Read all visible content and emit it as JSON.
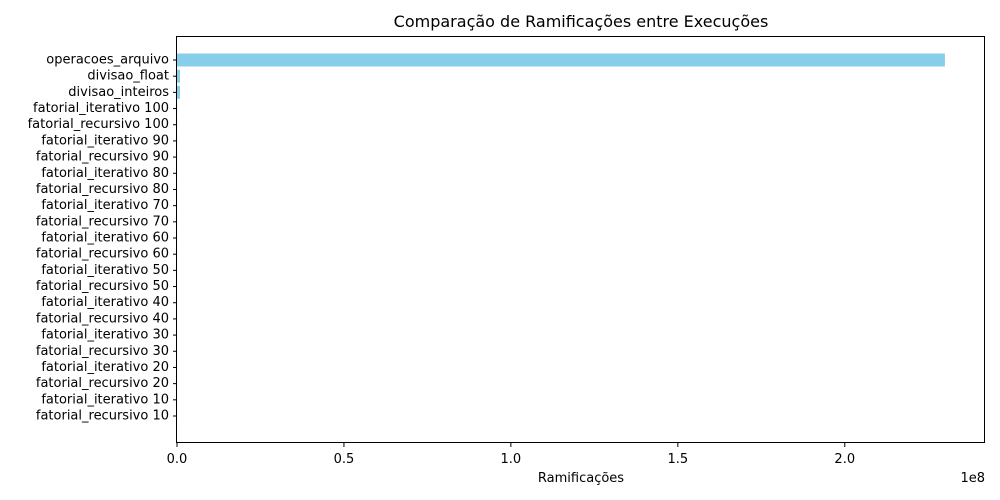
{
  "chart_data": {
    "type": "bar",
    "orientation": "horizontal",
    "title": "Comparação de Ramificações entre Execuções",
    "xlabel": "Ramificações",
    "ylabel": "",
    "x_offset_label": "1e8",
    "xlim": [
      0,
      2.42
    ],
    "x_ticks": [
      0.0,
      0.5,
      1.0,
      1.5,
      2.0
    ],
    "x_tick_labels": [
      "0.0",
      "0.5",
      "1.0",
      "1.5",
      "2.0"
    ],
    "bar_color": "#87CEEB",
    "grid": false,
    "categories": [
      "operacoes_arquivo",
      "divisao_float",
      "divisao_inteiros",
      "fatorial_iterativo 100",
      "fatorial_recursivo 100",
      "fatorial_iterativo 90",
      "fatorial_recursivo 90",
      "fatorial_iterativo 80",
      "fatorial_recursivo 80",
      "fatorial_iterativo 70",
      "fatorial_recursivo 70",
      "fatorial_iterativo 60",
      "fatorial_recursivo 60",
      "fatorial_iterativo 50",
      "fatorial_recursivo 50",
      "fatorial_iterativo 40",
      "fatorial_recursivo 40",
      "fatorial_iterativo 30",
      "fatorial_recursivo 30",
      "fatorial_iterativo 20",
      "fatorial_recursivo 20",
      "fatorial_iterativo 10",
      "fatorial_recursivo 10"
    ],
    "values": [
      2.3,
      0.009,
      0.009,
      0.0003,
      0.0003,
      0.0003,
      0.0003,
      0.0002,
      0.0002,
      0.0002,
      0.0002,
      0.0002,
      0.0002,
      0.0001,
      0.0001,
      0.0001,
      0.0001,
      0.0001,
      0.0001,
      0.0001,
      0.0001,
      0.0001,
      0.0001
    ]
  }
}
